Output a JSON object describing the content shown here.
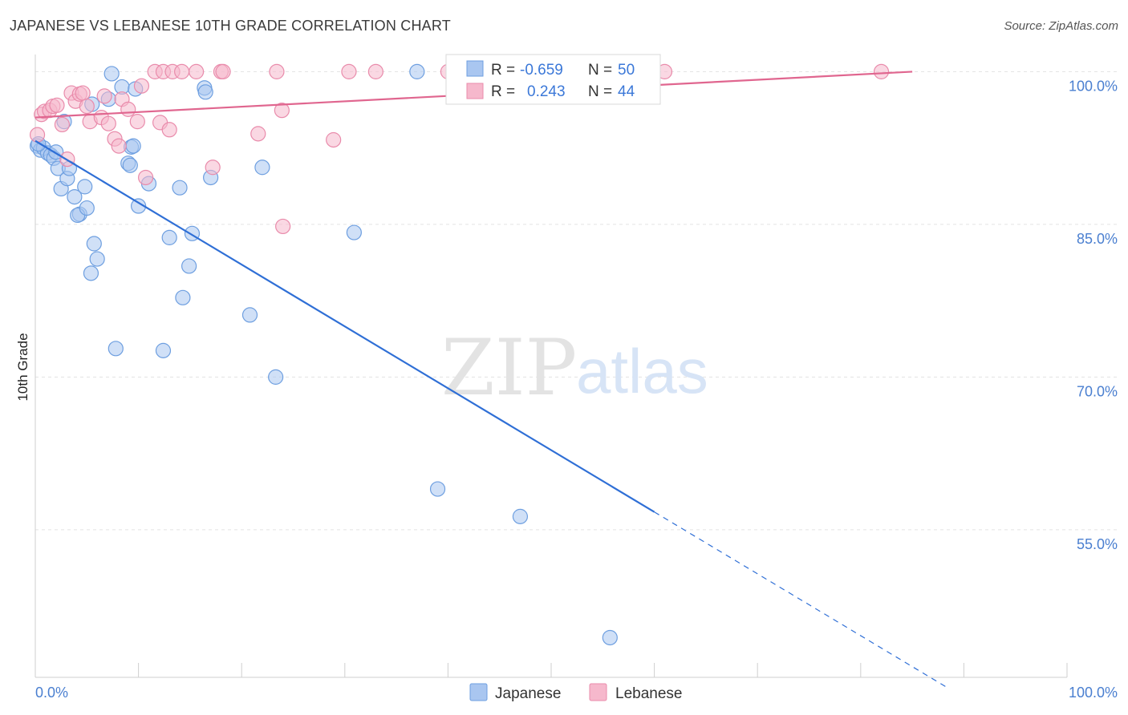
{
  "header": {
    "title": "JAPANESE VS LEBANESE 10TH GRADE CORRELATION CHART",
    "source": "Source: ZipAtlas.com"
  },
  "watermark": {
    "zip": "ZIP",
    "atlas": "atlas"
  },
  "legend": {
    "rows": [
      {
        "r_label": "R =",
        "r_value": "-0.659",
        "n_label": "N =",
        "n_value": "50",
        "color": "#a9c6f0",
        "stroke": "#6e9fe0"
      },
      {
        "r_label": "R =",
        "r_value": "0.243",
        "n_label": "N =",
        "n_value": "44",
        "color": "#f6b8cc",
        "stroke": "#e98bab"
      }
    ]
  },
  "bottom_legend": [
    {
      "label": "Japanese",
      "color": "#a9c6f0",
      "stroke": "#6e9fe0"
    },
    {
      "label": "Lebanese",
      "color": "#f6b8cc",
      "stroke": "#e98bab"
    }
  ],
  "chart_data": {
    "type": "scatter",
    "title": "JAPANESE VS LEBANESE 10TH GRADE CORRELATION CHART",
    "xlabel": "",
    "ylabel": "10th Grade",
    "xlim": [
      0,
      100
    ],
    "ylim": [
      40.5,
      102
    ],
    "x_tick_labels": [
      "0.0%",
      "100.0%"
    ],
    "y_ticks": [
      {
        "value": 100,
        "label": "100.0%"
      },
      {
        "value": 85,
        "label": "85.0%"
      },
      {
        "value": 70,
        "label": "70.0%"
      },
      {
        "value": 55,
        "label": "55.0%"
      }
    ],
    "grid": true,
    "legend_position": "top-center",
    "series": [
      {
        "name": "Japanese",
        "color": "#a9c6f0",
        "stroke": "#6e9fe0",
        "line_color": "#2f6fd6",
        "R": -0.659,
        "N": 50,
        "trend": {
          "x0": 0,
          "y0": 93.2,
          "x_solid_end": 60,
          "x_dash_end": 88.5
        },
        "points": [
          [
            0.2,
            92.7
          ],
          [
            0.5,
            92.3
          ],
          [
            0.8,
            92.5
          ],
          [
            1.2,
            92.0
          ],
          [
            1.5,
            91.8
          ],
          [
            1.8,
            91.5
          ],
          [
            2.0,
            92.1
          ],
          [
            2.2,
            90.5
          ],
          [
            2.5,
            88.5
          ],
          [
            2.8,
            95.1
          ],
          [
            3.1,
            89.5
          ],
          [
            3.3,
            90.5
          ],
          [
            3.8,
            87.7
          ],
          [
            4.3,
            86.0
          ],
          [
            4.1,
            85.9
          ],
          [
            4.8,
            88.7
          ],
          [
            5.0,
            86.6
          ],
          [
            5.5,
            96.8
          ],
          [
            5.7,
            83.1
          ],
          [
            6.0,
            81.6
          ],
          [
            5.4,
            80.2
          ],
          [
            7.1,
            97.3
          ],
          [
            7.4,
            99.8
          ],
          [
            7.8,
            72.8
          ],
          [
            8.4,
            98.5
          ],
          [
            9.0,
            91.0
          ],
          [
            9.2,
            90.8
          ],
          [
            9.3,
            92.6
          ],
          [
            9.5,
            92.7
          ],
          [
            9.7,
            98.3
          ],
          [
            10.0,
            86.8
          ],
          [
            11.0,
            89.0
          ],
          [
            12.4,
            72.6
          ],
          [
            13.0,
            83.7
          ],
          [
            14.0,
            88.6
          ],
          [
            14.3,
            77.8
          ],
          [
            14.9,
            80.9
          ],
          [
            15.2,
            84.1
          ],
          [
            16.4,
            98.4
          ],
          [
            16.5,
            98.0
          ],
          [
            17.0,
            89.6
          ],
          [
            20.8,
            76.1
          ],
          [
            22.0,
            90.6
          ],
          [
            23.3,
            70.0
          ],
          [
            30.9,
            84.2
          ],
          [
            37.0,
            100.0
          ],
          [
            39.0,
            59.0
          ],
          [
            47.0,
            56.3
          ],
          [
            55.7,
            44.4
          ],
          [
            0.3,
            92.9
          ]
        ]
      },
      {
        "name": "Lebanese",
        "color": "#f6b8cc",
        "stroke": "#e98bab",
        "line_color": "#e0668f",
        "R": 0.243,
        "N": 44,
        "trend": {
          "x0": 0,
          "y0": 95.5,
          "x_solid_end": 85,
          "x_dash_end": 85
        },
        "points": [
          [
            0.2,
            93.8
          ],
          [
            0.6,
            95.8
          ],
          [
            0.9,
            96.1
          ],
          [
            1.4,
            96.2
          ],
          [
            1.7,
            96.6
          ],
          [
            2.1,
            96.7
          ],
          [
            2.6,
            94.8
          ],
          [
            3.1,
            91.4
          ],
          [
            3.5,
            97.9
          ],
          [
            3.9,
            97.1
          ],
          [
            4.3,
            97.8
          ],
          [
            4.6,
            97.9
          ],
          [
            5.0,
            96.6
          ],
          [
            5.3,
            95.1
          ],
          [
            6.4,
            95.5
          ],
          [
            6.7,
            97.6
          ],
          [
            7.1,
            94.9
          ],
          [
            7.7,
            93.4
          ],
          [
            8.1,
            92.7
          ],
          [
            8.4,
            97.3
          ],
          [
            9.0,
            96.3
          ],
          [
            9.9,
            95.1
          ],
          [
            10.3,
            98.6
          ],
          [
            10.7,
            89.6
          ],
          [
            11.6,
            100.0
          ],
          [
            12.1,
            95.0
          ],
          [
            12.4,
            100.0
          ],
          [
            13.0,
            94.3
          ],
          [
            13.3,
            100.0
          ],
          [
            14.2,
            100.0
          ],
          [
            15.6,
            100.0
          ],
          [
            17.2,
            90.6
          ],
          [
            18.0,
            100.0
          ],
          [
            18.2,
            100.0
          ],
          [
            21.6,
            93.9
          ],
          [
            23.4,
            100.0
          ],
          [
            23.9,
            96.2
          ],
          [
            24.0,
            84.8
          ],
          [
            28.9,
            93.3
          ],
          [
            30.4,
            100.0
          ],
          [
            33.0,
            100.0
          ],
          [
            40.0,
            100.0
          ],
          [
            61.0,
            100.0
          ],
          [
            82.0,
            100.0
          ]
        ]
      }
    ]
  }
}
